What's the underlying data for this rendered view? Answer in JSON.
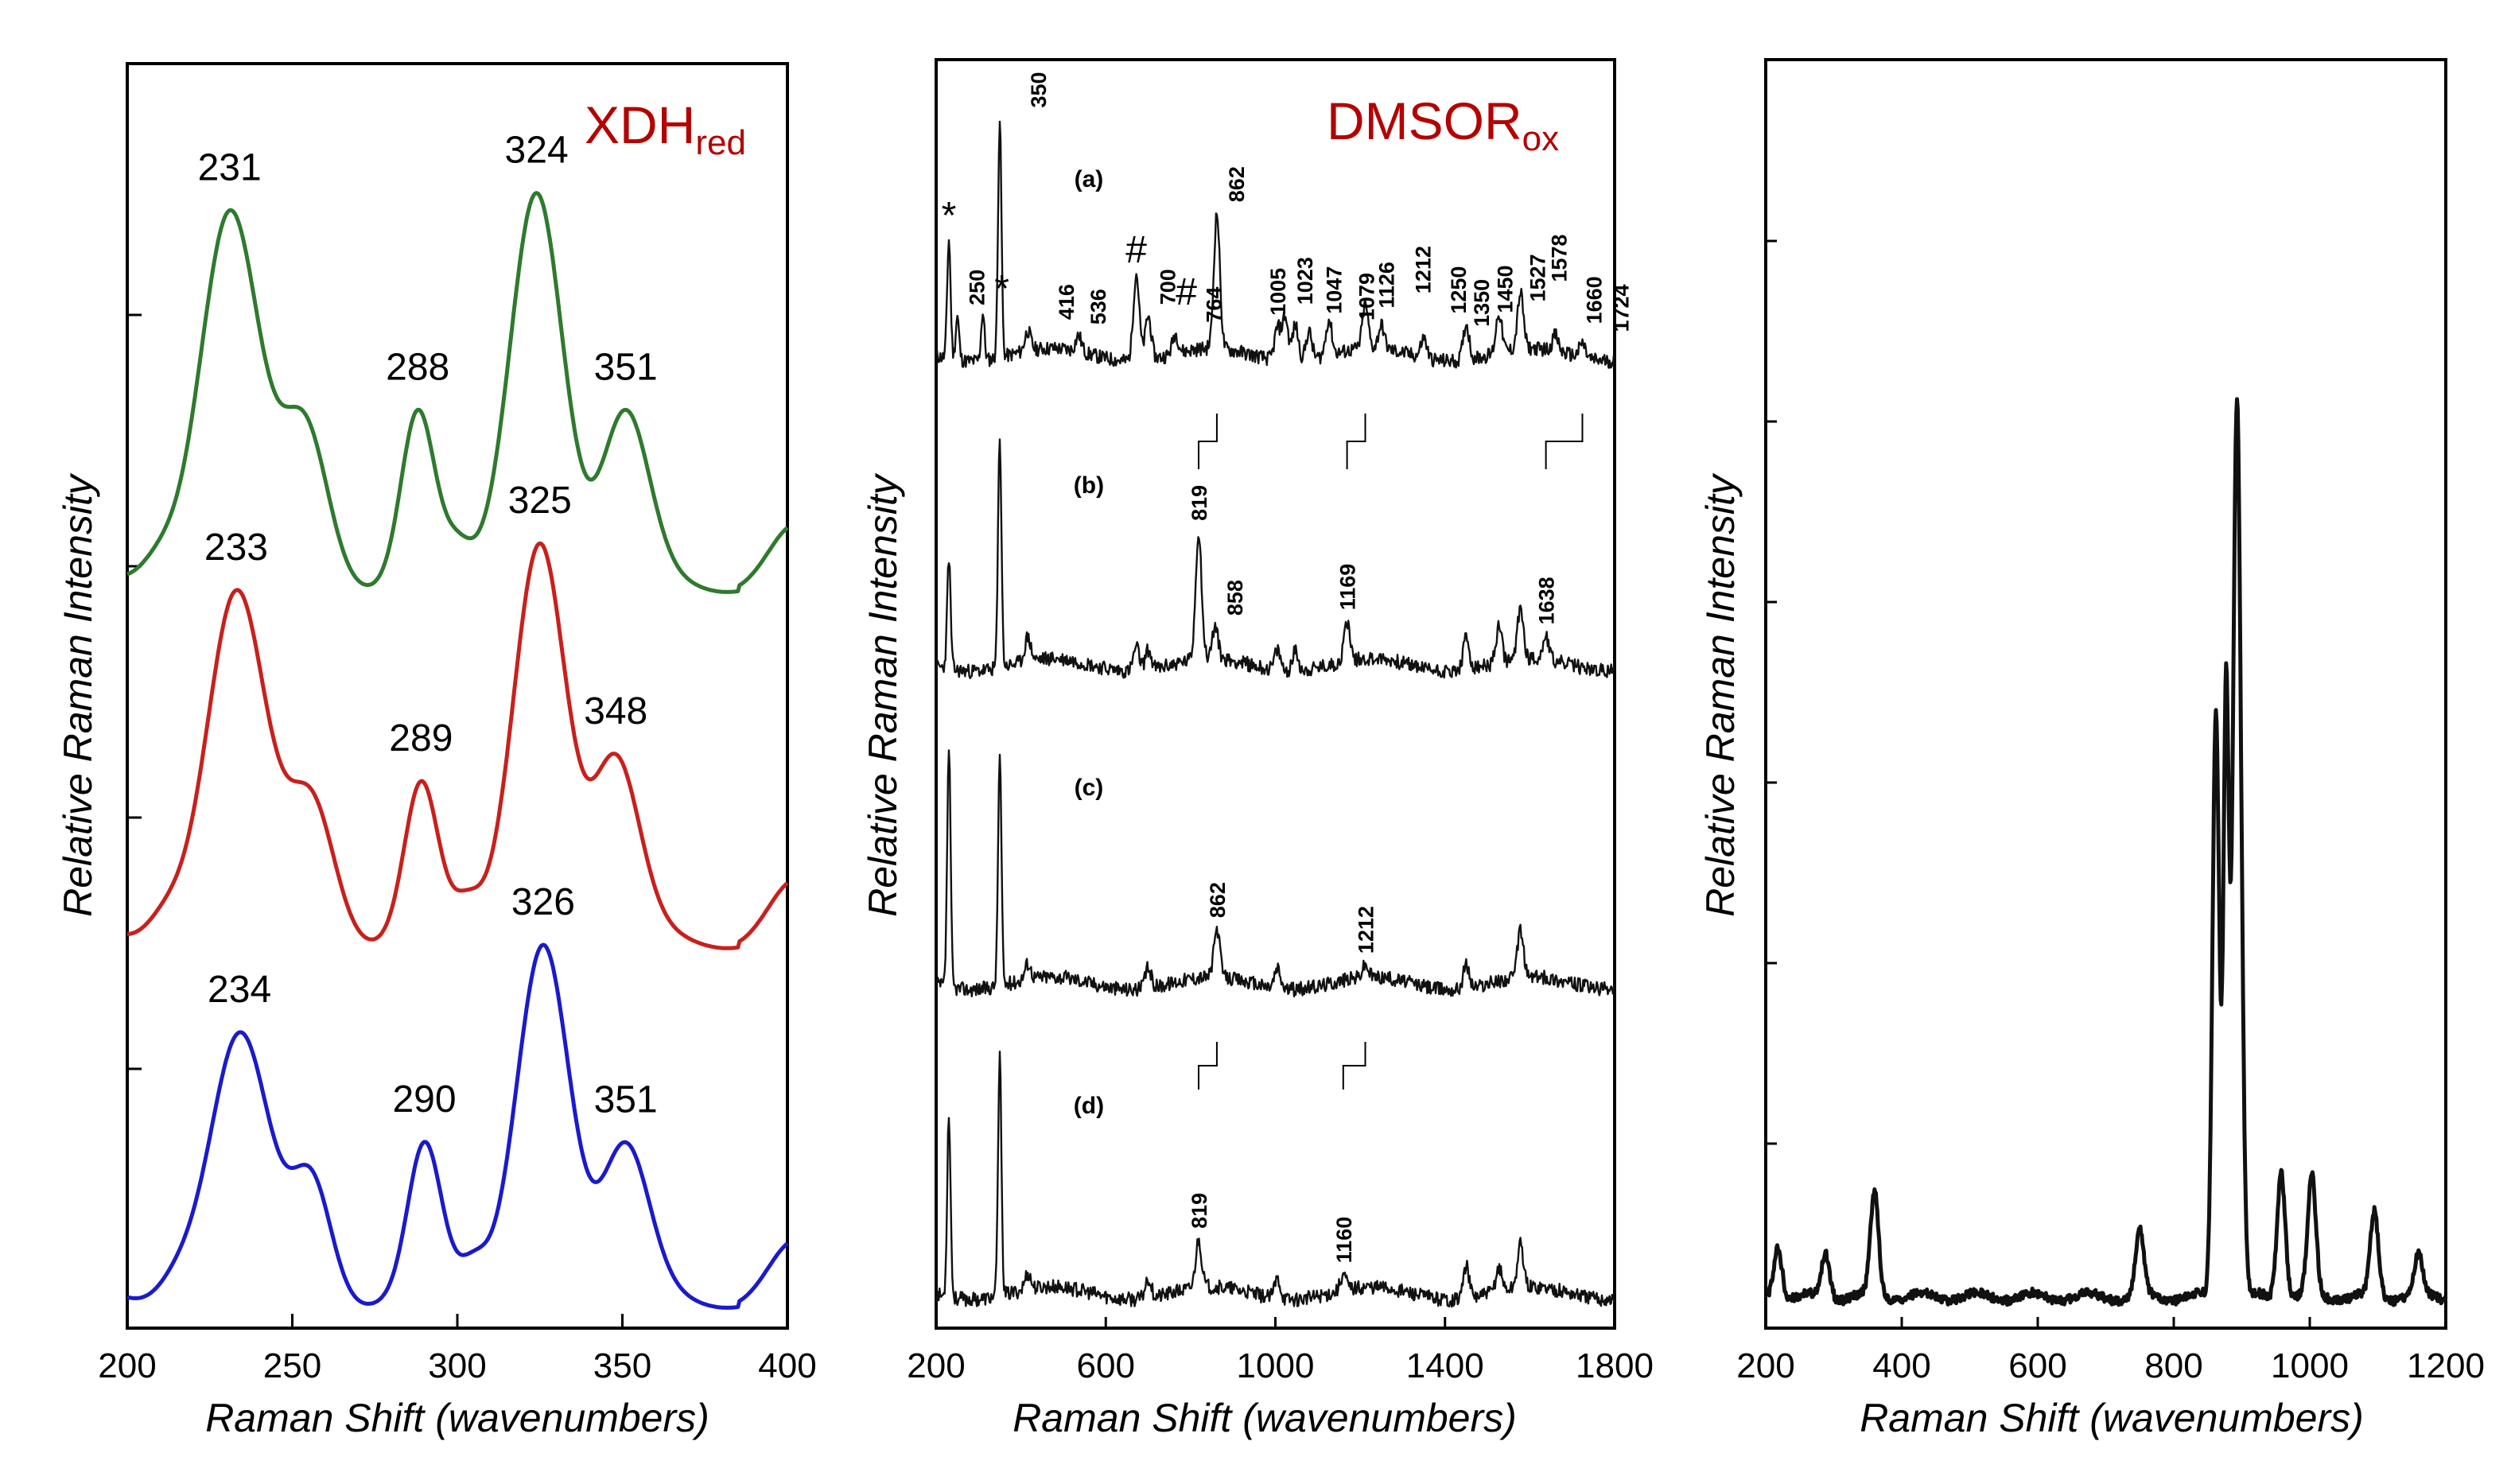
{
  "colors": {
    "green": "#2e7a2e",
    "red": "#c8201c",
    "blue": "#1a1acc",
    "black": "#111111",
    "title": "#b40000"
  },
  "chart_data": [
    {
      "type": "line",
      "title_main": "XDH",
      "title_sub": "red",
      "xlabel": "Raman Shift (wavenumbers)",
      "ylabel": "Relative Raman Intensity",
      "xlim": [
        200,
        400
      ],
      "xticks": [
        "200",
        "250",
        "300",
        "350",
        "400"
      ],
      "series": [
        {
          "name": "green",
          "peaks": [
            {
              "x": 231,
              "label": "231"
            },
            {
              "x": 288,
              "label": "288"
            },
            {
              "x": 324,
              "label": "324"
            },
            {
              "x": 351,
              "label": "351"
            }
          ]
        },
        {
          "name": "red",
          "peaks": [
            {
              "x": 233,
              "label": "233"
            },
            {
              "x": 289,
              "label": "289"
            },
            {
              "x": 325,
              "label": "325"
            },
            {
              "x": 348,
              "label": "348"
            }
          ]
        },
        {
          "name": "blue",
          "peaks": [
            {
              "x": 234,
              "label": "234"
            },
            {
              "x": 290,
              "label": "290"
            },
            {
              "x": 326,
              "label": "326"
            },
            {
              "x": 351,
              "label": "351"
            }
          ]
        }
      ]
    },
    {
      "type": "line",
      "title_main": "DMSOR",
      "title_sub": "ox",
      "xlabel": "Raman Shift (wavenumbers)",
      "ylabel": "Relative Raman Intensity",
      "xlim": [
        200,
        1800
      ],
      "xticks": [
        "200",
        "600",
        "1000",
        "1400",
        "1800"
      ],
      "traces": [
        {
          "label": "(a)",
          "peaks": [
            {
              "x": 230,
              "label": "*"
            },
            {
              "x": 250,
              "label": "250"
            },
            {
              "x": 310,
              "label": "*"
            },
            {
              "x": 350,
              "label": "350"
            },
            {
              "x": 416,
              "label": "416"
            },
            {
              "x": 536,
              "label": "536"
            },
            {
              "x": 672,
              "label": "#"
            },
            {
              "x": 700,
              "label": "700"
            },
            {
              "x": 700,
              "label": "#"
            },
            {
              "x": 764,
              "label": "764"
            },
            {
              "x": 862,
              "label": "862"
            },
            {
              "x": 1005,
              "label": "1005"
            },
            {
              "x": 1023,
              "label": "1023"
            },
            {
              "x": 1047,
              "label": "1047"
            },
            {
              "x": 1079,
              "label": "1079"
            },
            {
              "x": 1126,
              "label": "1126"
            },
            {
              "x": 1212,
              "label": "1212"
            },
            {
              "x": 1250,
              "label": "1250"
            },
            {
              "x": 1350,
              "label": "1350"
            },
            {
              "x": 1450,
              "label": "1450"
            },
            {
              "x": 1527,
              "label": "1527"
            },
            {
              "x": 1578,
              "label": "1578"
            },
            {
              "x": 1660,
              "label": "1660"
            },
            {
              "x": 1724,
              "label": "1724"
            }
          ]
        },
        {
          "label": "(b)",
          "peaks": [
            {
              "x": 819,
              "label": "819"
            },
            {
              "x": 858,
              "label": "858"
            },
            {
              "x": 1169,
              "label": "1169"
            },
            {
              "x": 1638,
              "label": "1638"
            }
          ]
        },
        {
          "label": "(c)",
          "peaks": [
            {
              "x": 862,
              "label": "862"
            },
            {
              "x": 1212,
              "label": "1212"
            }
          ]
        },
        {
          "label": "(d)",
          "peaks": [
            {
              "x": 819,
              "label": "819"
            },
            {
              "x": 1160,
              "label": "1160"
            }
          ]
        }
      ]
    },
    {
      "type": "line",
      "xlabel": "Raman Shift (wavenumbers)",
      "ylabel": "Relative Raman Intensity",
      "xlim": [
        200,
        1200
      ],
      "xticks": [
        "200",
        "400",
        "600",
        "800",
        "1000",
        "1200"
      ],
      "peaks_x": [
        218,
        288,
        360,
        750,
        862,
        877,
        893,
        958,
        1003,
        1095,
        1160
      ]
    }
  ]
}
